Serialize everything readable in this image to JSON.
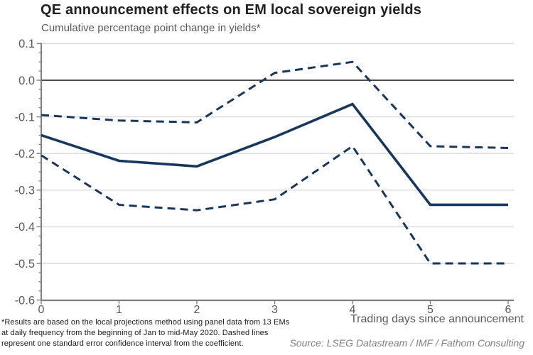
{
  "title": "QE announcement effects on EM local sovereign yields",
  "subtitle": "Cumulative percentage point change in yields*",
  "footnote_lines": [
    "*Results are based on the local projections method using panel data from 13 EMs",
    "at daily frequency from the beginning of Jan to mid-May 2020. Dashed lines",
    "represent one standard error confidence interval from the coefficient."
  ],
  "source": "Source: LSEG Datastream / IMF / Fathom Consulting",
  "chart_data": {
    "type": "line",
    "title": "QE announcement effects on EM local sovereign yields",
    "subtitle": "Cumulative percentage point change in yields*",
    "xlabel": "Trading days since announcement",
    "ylabel": "",
    "x": [
      0,
      1,
      2,
      3,
      4,
      5,
      6
    ],
    "x_tick_labels": [
      "0",
      "1",
      "2",
      "3",
      "4",
      "5",
      "6"
    ],
    "y_tick_labels": [
      "0.1",
      "0.0",
      "-0.1",
      "-0.2",
      "-0.3",
      "-0.4",
      "-0.5",
      "-0.6"
    ],
    "ylim": [
      -0.6,
      0.1
    ],
    "minor_tick_step": 0.025,
    "grid": "horizontal",
    "legend": "none",
    "series": [
      {
        "key": "central-estimate",
        "style": "solid",
        "values": [
          -0.15,
          -0.22,
          -0.235,
          -0.155,
          -0.065,
          -0.34,
          -0.34
        ]
      },
      {
        "key": "upper-band",
        "style": "dashed",
        "values": [
          -0.095,
          -0.11,
          -0.115,
          0.02,
          0.05,
          -0.18,
          -0.185
        ]
      },
      {
        "key": "lower-band",
        "style": "dashed",
        "values": [
          -0.205,
          -0.34,
          -0.355,
          -0.325,
          -0.18,
          -0.5,
          -0.5
        ]
      }
    ],
    "colors": {
      "line": "#17375E",
      "grid": "#D9D9D9",
      "zero_line": "#333333",
      "axis": "#7F7F7F",
      "tick_label": "#595959"
    }
  }
}
